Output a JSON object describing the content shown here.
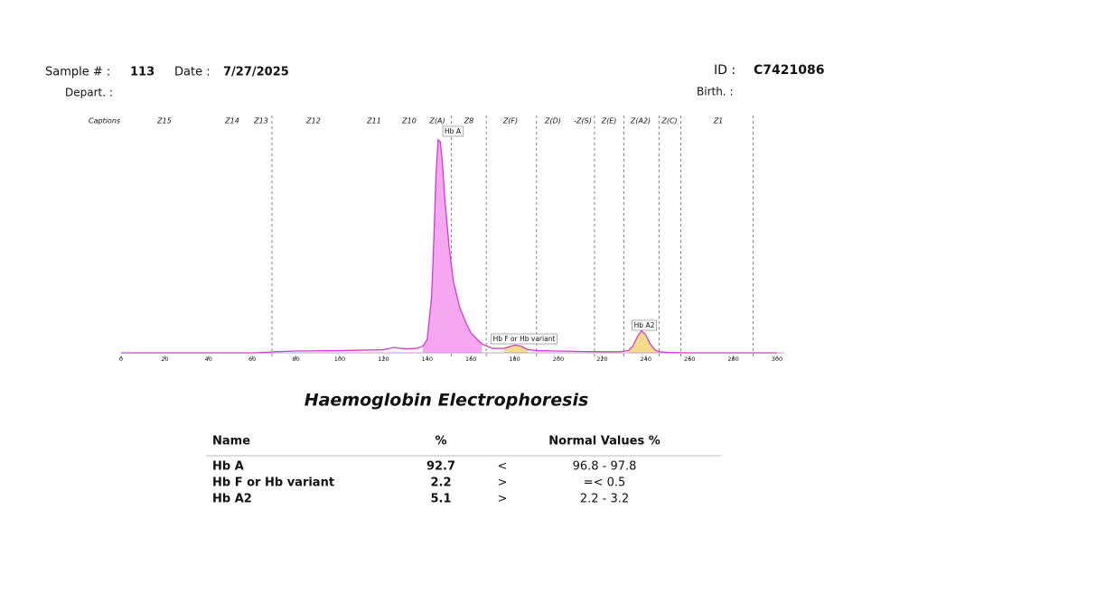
{
  "header": {
    "sample_label": "Sample # :",
    "sample": "113",
    "date_label": "Date :",
    "date": "7/27/2025",
    "id_label": "ID :",
    "id": "C7421086",
    "depart_label": "Depart. :",
    "birth_label": "Birth. :"
  },
  "chart_data": {
    "type": "line",
    "captions_label": "Captions",
    "captions": [
      "Z15",
      "Z14",
      "Z13",
      "Z12",
      "Z11",
      "Z10",
      "Z(A)",
      "Z8",
      "Z(F)",
      "Z(D)",
      "-Z(S)",
      "Z(E)",
      "Z(A2)",
      "Z(C)",
      "Z1"
    ],
    "zone_boundaries": [
      69,
      151,
      167,
      190,
      216.5,
      230,
      246,
      256,
      289
    ],
    "x": [
      0,
      60,
      68,
      70,
      80,
      100,
      110,
      120,
      125,
      128,
      130,
      135,
      138,
      140,
      142,
      143,
      144,
      145,
      146,
      147,
      148,
      150,
      152,
      155,
      158,
      160,
      165,
      170,
      175,
      180,
      183,
      186,
      190,
      200,
      210,
      220,
      228,
      232,
      234,
      236,
      238,
      239,
      240,
      242,
      244,
      246,
      250,
      260,
      280,
      300
    ],
    "series": [
      {
        "color": "#d23cd2",
        "values": [
          0,
          0,
          0.3,
          0.5,
          0.8,
          1,
          1.2,
          1.4,
          2.5,
          2,
          1.8,
          2,
          3,
          6,
          25,
          50,
          80,
          96,
          95,
          85,
          70,
          48,
          32,
          20,
          13,
          9,
          4,
          2,
          2,
          3.5,
          3,
          1.5,
          1,
          0.8,
          0.6,
          0.5,
          0.5,
          1,
          3,
          7,
          10,
          9,
          8,
          4,
          1.5,
          0.5,
          0.2,
          0,
          0,
          0
        ]
      }
    ],
    "peaks": [
      {
        "label": "Hb A",
        "range": [
          136,
          166
        ],
        "color": "#f5a8f0"
      },
      {
        "label": "Hb F or Hb variant",
        "range": [
          174,
          188
        ],
        "color": "#f3dc8c"
      },
      {
        "label": "Hb A2",
        "range": [
          232,
          246
        ],
        "color": "#f3dc8c"
      }
    ],
    "xlim": [
      0,
      300
    ],
    "ylim": [
      0,
      100
    ],
    "xticks": [
      0,
      20,
      40,
      60,
      80,
      100,
      120,
      140,
      160,
      180,
      200,
      220,
      240,
      260,
      280,
      300
    ]
  },
  "report": {
    "title": "Haemoglobin Electrophoresis",
    "table": {
      "columns": [
        "Name",
        "%",
        "Normal Values %"
      ],
      "rows": [
        [
          "Hb A",
          92.7,
          "<",
          "96.8 - 97.8"
        ],
        [
          "Hb F or Hb variant",
          2.2,
          ">",
          "=<  0.5"
        ],
        [
          "Hb A2",
          5.1,
          ">",
          "2.2 -  3.2"
        ]
      ]
    }
  }
}
